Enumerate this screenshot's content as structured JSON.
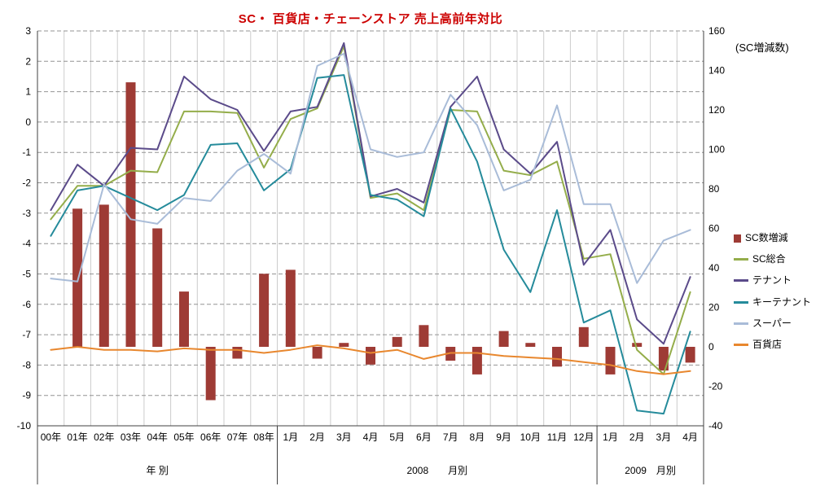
{
  "title": "SC・ 百貨店・チェーンストア 売上高前年対比",
  "title_color": "#cc0000",
  "chart_data": {
    "type": "combo-bar-line",
    "title": "SC・ 百貨店・チェーンストア 売上高前年対比",
    "categories": [
      "00年",
      "01年",
      "02年",
      "03年",
      "04年",
      "05年",
      "06年",
      "07年",
      "08年",
      "1月",
      "2月",
      "3月",
      "4月",
      "5月",
      "6月",
      "7月",
      "8月",
      "9月",
      "10月",
      "11月",
      "12月",
      "1月",
      "2月",
      "3月",
      "4月"
    ],
    "category_groups": [
      {
        "label": "年 別",
        "start": 0,
        "end": 8
      },
      {
        "label": "2008　　月別",
        "start": 9,
        "end": 20
      },
      {
        "label": "2009　月別",
        "start": 21,
        "end": 24
      }
    ],
    "left_axis": {
      "min": -10,
      "max": 3,
      "step": 1,
      "ticks": [
        3,
        2,
        1,
        0,
        -1,
        -2,
        -3,
        -4,
        -5,
        -6,
        -7,
        -8,
        -9,
        -10
      ]
    },
    "right_axis": {
      "min": -40,
      "max": 160,
      "step": 20,
      "title": "(SC増減数)",
      "ticks": [
        160,
        140,
        120,
        100,
        80,
        60,
        40,
        20,
        0,
        -20,
        -40
      ]
    },
    "bar_series": {
      "name": "SC数増減",
      "axis": "right",
      "color": "#9e3b35",
      "values": [
        null,
        70,
        72,
        134,
        60,
        28,
        -27,
        -6,
        37,
        39,
        -6,
        2,
        -9,
        5,
        11,
        -7,
        -14,
        8,
        2,
        -10,
        10,
        -14,
        2,
        -12,
        -8
      ]
    },
    "line_series": [
      {
        "name": "SC総合",
        "axis": "left",
        "color": "#94ad4a",
        "values": [
          -3.2,
          -2.1,
          -2.1,
          -1.6,
          -1.65,
          0.35,
          0.35,
          0.3,
          -1.5,
          0.1,
          0.45,
          2.5,
          -2.5,
          -2.35,
          -2.9,
          0.4,
          0.35,
          -1.6,
          -1.75,
          -1.3,
          -4.5,
          -4.35,
          -7.5,
          -8.3,
          -5.6
        ]
      },
      {
        "name": "テナント",
        "axis": "left",
        "color": "#5b4b8a",
        "values": [
          -2.9,
          -1.4,
          -2.1,
          -0.85,
          -0.9,
          1.5,
          0.75,
          0.4,
          -0.95,
          0.35,
          0.5,
          2.6,
          -2.45,
          -2.2,
          -2.65,
          0.5,
          1.5,
          -0.9,
          -1.7,
          -0.65,
          -4.7,
          -3.55,
          -6.5,
          -7.3,
          -5.1
        ]
      },
      {
        "name": "キーテナント",
        "axis": "left",
        "color": "#258b9b",
        "values": [
          -3.75,
          -2.25,
          -2.1,
          -2.5,
          -2.9,
          -2.4,
          -0.75,
          -0.7,
          -2.25,
          -1.55,
          1.45,
          1.55,
          -2.4,
          -2.55,
          -3.1,
          0.45,
          -1.3,
          -4.2,
          -5.6,
          -2.9,
          -6.6,
          -6.2,
          -9.5,
          -9.6,
          -6.9
        ]
      },
      {
        "name": "スーパー",
        "axis": "left",
        "color": "#a9bcd8",
        "values": [
          -5.15,
          -5.25,
          -2.05,
          -3.2,
          -3.35,
          -2.5,
          -2.6,
          -1.6,
          -1.05,
          -1.7,
          1.85,
          2.25,
          -0.9,
          -1.15,
          -1.0,
          0.9,
          -0.1,
          -2.25,
          -1.9,
          0.55,
          -2.7,
          -2.7,
          -5.3,
          -3.9,
          -3.55
        ]
      },
      {
        "name": "百貨店",
        "axis": "left",
        "color": "#e8872e",
        "values": [
          -7.5,
          -7.4,
          -7.5,
          -7.5,
          -7.55,
          -7.45,
          -7.5,
          -7.5,
          -7.6,
          -7.5,
          -7.35,
          -7.45,
          -7.6,
          -7.5,
          -7.8,
          -7.6,
          -7.6,
          -7.7,
          -7.75,
          -7.8,
          -7.9,
          -8.0,
          -8.2,
          -8.3,
          -8.2
        ]
      }
    ],
    "legend_position": "right",
    "grid": true
  }
}
